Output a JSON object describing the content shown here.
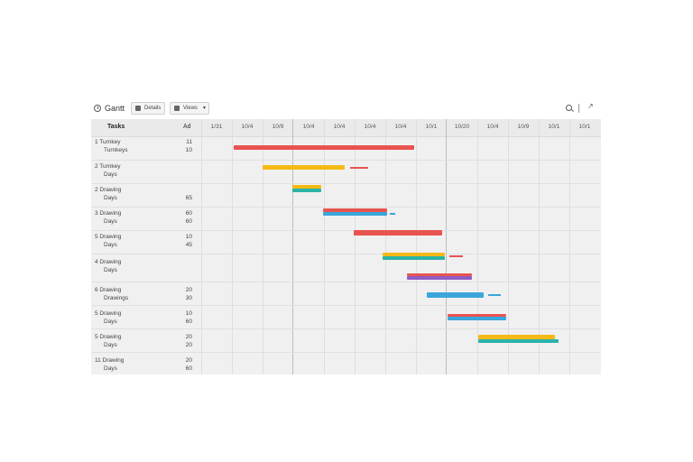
{
  "app": {
    "title": "Gantt"
  },
  "toolbar": {
    "btn1_label": "Details",
    "btn2_label": "Views"
  },
  "columns": {
    "task": "Tasks",
    "duration": "Ad"
  },
  "dates": [
    "1/31",
    "10/4",
    "10/9",
    "10/4",
    "10/4",
    "10/4",
    "10/4",
    "10/1",
    "10/20",
    "10/4",
    "10/9",
    "10/1",
    "10/1"
  ],
  "tasks": [
    {
      "line1": "1  Turnkey",
      "line2": "Turnkeys",
      "d1": "11",
      "d2": "10"
    },
    {
      "line1": "2  Turnkey",
      "line2": "Days",
      "d1": "",
      "d2": ""
    },
    {
      "line1": "2  Drawing",
      "line2": "Days",
      "d1": "",
      "d2": "65"
    },
    {
      "line1": "3  Drawing",
      "line2": "Days",
      "d1": "60",
      "d2": "60"
    },
    {
      "line1": "5  Drawing",
      "line2": "Days",
      "d1": "10",
      "d2": "45"
    },
    {
      "line1": "4  Drawing",
      "line2": "Days",
      "d1": "",
      "d2": ""
    },
    {
      "line1": "6  Drawing",
      "line2": "Drawings",
      "d1": "20",
      "d2": "30"
    },
    {
      "line1": "5  Drawing",
      "line2": "Days",
      "d1": "10",
      "d2": "60"
    },
    {
      "line1": "5  Drawing",
      "line2": "Days",
      "d1": "20",
      "d2": "20"
    },
    {
      "line1": "11  Drawing",
      "line2": "Days",
      "d1": "20",
      "d2": "60"
    }
  ],
  "colors": {
    "red": "#e8534f",
    "yellow": "#f5b916",
    "teal": "#2bb3a8",
    "blue": "#3aa6dc",
    "purple": "#8e5cc6",
    "green": "#3fbf5a"
  }
}
